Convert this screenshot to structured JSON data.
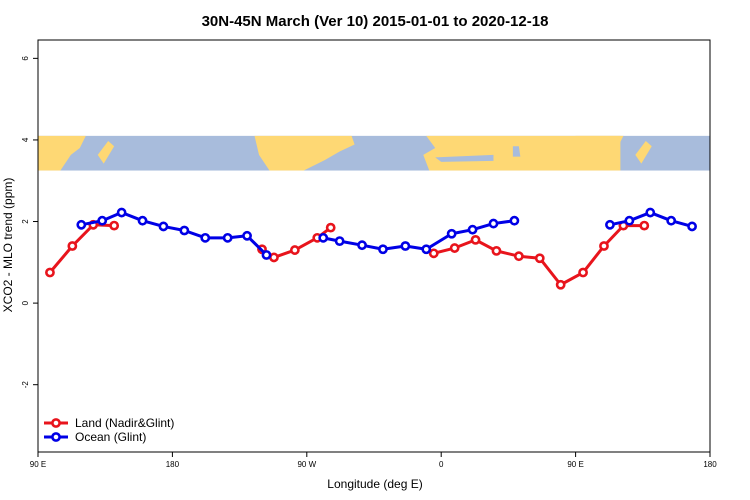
{
  "chart_data": {
    "type": "line",
    "title": "30N-45N March (Ver 10)   2015-01-01 to 2020-12-18",
    "xlabel": "Longitude (deg E)",
    "ylabel": "XCO2 - MLO trend (ppm)",
    "xlim": [
      90,
      540
    ],
    "ylim": [
      -3.65,
      6.45
    ],
    "x_ticks": [
      {
        "value": 90,
        "label": "90 E"
      },
      {
        "value": 180,
        "label": "180"
      },
      {
        "value": 270,
        "label": "90 W"
      },
      {
        "value": 360,
        "label": "0"
      },
      {
        "value": 450,
        "label": "90 E"
      },
      {
        "value": 540,
        "label": "180"
      }
    ],
    "y_ticks": [
      {
        "value": -2,
        "label": "-2"
      },
      {
        "value": 0,
        "label": "0"
      },
      {
        "value": 2,
        "label": "2"
      },
      {
        "value": 4,
        "label": "4"
      },
      {
        "value": 6,
        "label": "6"
      }
    ],
    "map_band": {
      "y_range": [
        3.25,
        4.1
      ],
      "ocean_color": "#a8bcdc",
      "land_color": "#fed874"
    },
    "legend_position": "bottom-left",
    "series": [
      {
        "name": "Land (Nadir&Glint)",
        "color": "#e8141c",
        "segments": [
          [
            [
              98,
              0.75
            ],
            [
              113,
              1.4
            ],
            [
              127,
              1.92
            ],
            [
              141,
              1.9
            ]
          ],
          [
            [
              240,
              1.32
            ],
            [
              248,
              1.12
            ],
            [
              262,
              1.3
            ],
            [
              277,
              1.6
            ],
            [
              286,
              1.85
            ]
          ],
          [
            [
              355,
              1.22
            ],
            [
              369,
              1.35
            ],
            [
              383,
              1.55
            ],
            [
              397,
              1.28
            ],
            [
              412,
              1.15
            ],
            [
              426,
              1.1
            ],
            [
              440,
              0.45
            ],
            [
              455,
              0.75
            ],
            [
              469,
              1.4
            ],
            [
              482,
              1.9
            ],
            [
              496,
              1.9
            ]
          ]
        ]
      },
      {
        "name": "Ocean (Glint)",
        "color": "#0000e6",
        "segments": [
          [
            [
              119,
              1.92
            ],
            [
              133,
              2.02
            ],
            [
              146,
              2.22
            ],
            [
              160,
              2.02
            ],
            [
              174,
              1.88
            ],
            [
              188,
              1.78
            ],
            [
              202,
              1.6
            ],
            [
              217,
              1.6
            ],
            [
              230,
              1.65
            ],
            [
              243,
              1.18
            ]
          ],
          [
            [
              281,
              1.6
            ],
            [
              292,
              1.52
            ],
            [
              307,
              1.42
            ],
            [
              321,
              1.32
            ],
            [
              336,
              1.4
            ],
            [
              350,
              1.32
            ],
            [
              367,
              1.7
            ],
            [
              381,
              1.8
            ],
            [
              395,
              1.95
            ],
            [
              409,
              2.02
            ]
          ],
          [
            [
              473,
              1.92
            ],
            [
              486,
              2.02
            ],
            [
              500,
              2.22
            ],
            [
              514,
              2.02
            ],
            [
              528,
              1.88
            ]
          ]
        ]
      }
    ]
  }
}
